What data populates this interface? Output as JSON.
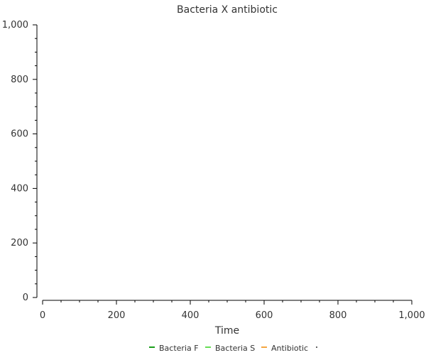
{
  "chart_data": {
    "type": "line",
    "title": "Bacteria X antibiotic",
    "xlabel": "Time",
    "ylabel": "",
    "xlim": [
      0,
      1000
    ],
    "ylim": [
      0,
      1000
    ],
    "x_ticks": [
      "0",
      "200",
      "400",
      "600",
      "800",
      "1,000"
    ],
    "y_ticks": [
      "0",
      "200",
      "400",
      "600",
      "800",
      "1,000"
    ],
    "grid": false,
    "legend_position": "bottom-center",
    "series": [
      {
        "name": "Bacteria F",
        "color": "#1a9f1a",
        "x": [],
        "y": []
      },
      {
        "name": "Bacteria S",
        "color": "#66dd55",
        "x": [],
        "y": []
      },
      {
        "name": "Antibiotic",
        "color": "#f4a640",
        "x": [],
        "y": []
      }
    ]
  }
}
